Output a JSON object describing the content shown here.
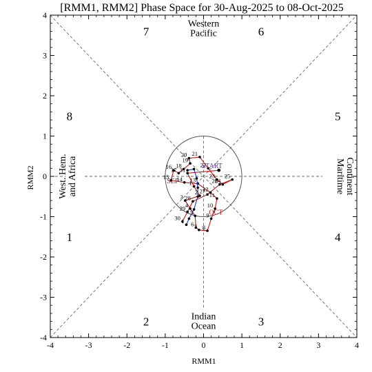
{
  "chart_data": {
    "type": "line",
    "title": "[RMM1, RMM2] Phase Space for 30-Aug-2025 to 08-Oct-2025",
    "xlabel": "RMM1",
    "ylabel": "RMM2",
    "xlim": [
      -4,
      4
    ],
    "ylim": [
      -4,
      4
    ],
    "xticks": [
      "-4",
      "-3",
      "-2",
      "-1",
      "0",
      "1",
      "2",
      "3",
      "4"
    ],
    "yticks": [
      "-4",
      "-3",
      "-2",
      "-1",
      "0",
      "1",
      "2",
      "3",
      "4"
    ],
    "unit_circle_radius": 1,
    "phases": [
      {
        "label": "1",
        "x": -3.5,
        "y": -1.5
      },
      {
        "label": "2",
        "x": -1.5,
        "y": -3.6
      },
      {
        "label": "3",
        "x": 1.5,
        "y": -3.6
      },
      {
        "label": "4",
        "x": 3.5,
        "y": -1.5
      },
      {
        "label": "5",
        "x": 3.5,
        "y": 1.5
      },
      {
        "label": "6",
        "x": 1.5,
        "y": 3.6
      },
      {
        "label": "7",
        "x": -1.5,
        "y": 3.6
      },
      {
        "label": "8",
        "x": -3.5,
        "y": 1.5
      }
    ],
    "regions": [
      {
        "lines": [
          "Western",
          "Pacific"
        ],
        "x": 0,
        "y": 3.72,
        "orient": "h"
      },
      {
        "lines": [
          "Indian",
          "Ocean"
        ],
        "x": 0,
        "y": -3.55,
        "orient": "h"
      },
      {
        "lines": [
          "West. Hem.",
          "and Africa"
        ],
        "x": -3.55,
        "y": 0,
        "orient": "l"
      },
      {
        "lines": [
          "Maritime",
          "Continent"
        ],
        "x": 3.55,
        "y": 0,
        "orient": "r"
      }
    ],
    "start_label": "START",
    "month_labels": [
      {
        "text": "SEP",
        "x": -0.8,
        "y": -0.17
      },
      {
        "text": "OCT",
        "x": 0.32,
        "y": -0.95
      }
    ],
    "series": [
      {
        "color": "#d01010",
        "points": [
          {
            "x": 0.4,
            "y": 0.15,
            "label": ""
          },
          {
            "x": -0.42,
            "y": 0.08,
            "label": "31"
          },
          {
            "x": -0.25,
            "y": -0.25,
            "label": "1"
          },
          {
            "x": -0.1,
            "y": -0.48,
            "label": "2"
          },
          {
            "x": -0.48,
            "y": -0.6,
            "label": "3"
          },
          {
            "x": -0.35,
            "y": -0.8,
            "label": "4"
          },
          {
            "x": -0.22,
            "y": -0.98,
            "label": "5"
          },
          {
            "x": -0.2,
            "y": -1.27,
            "label": "6"
          },
          {
            "x": -0.12,
            "y": -1.33,
            "label": "7"
          },
          {
            "x": 0.1,
            "y": -1.35,
            "label": "8"
          },
          {
            "x": 0.2,
            "y": -1.05,
            "label": "9"
          },
          {
            "x": 0.3,
            "y": -0.8,
            "label": "10"
          },
          {
            "x": 0.35,
            "y": -0.55,
            "label": "11"
          },
          {
            "x": 0.18,
            "y": -0.4,
            "label": "12"
          },
          {
            "x": -0.15,
            "y": -0.18,
            "label": "13"
          },
          {
            "x": -0.5,
            "y": -0.15,
            "label": "14"
          },
          {
            "x": -0.85,
            "y": -0.1,
            "label": "15"
          },
          {
            "x": -0.78,
            "y": 0.15,
            "label": "16"
          },
          {
            "x": -0.65,
            "y": 0.08,
            "label": "17"
          },
          {
            "x": -0.52,
            "y": 0.18,
            "label": "18"
          },
          {
            "x": -0.35,
            "y": 0.32,
            "label": "19"
          },
          {
            "x": -0.38,
            "y": 0.45,
            "label": "20"
          },
          {
            "x": -0.1,
            "y": 0.48,
            "label": "21"
          },
          {
            "x": 0.12,
            "y": 0.2,
            "label": "22"
          },
          {
            "x": 0.35,
            "y": -0.08,
            "label": "23"
          },
          {
            "x": 0.5,
            "y": -0.2,
            "label": "24"
          },
          {
            "x": 0.75,
            "y": -0.08,
            "label": "25"
          },
          {
            "x": 0.42,
            "y": -0.2,
            "label": "26"
          },
          {
            "x": 0.1,
            "y": -0.45,
            "label": "27"
          },
          {
            "x": -0.28,
            "y": -0.62,
            "label": "28"
          },
          {
            "x": -0.42,
            "y": -0.88,
            "label": "29"
          },
          {
            "x": -0.55,
            "y": -1.12,
            "label": "30"
          }
        ]
      },
      {
        "color": "#1030d0",
        "points": [
          {
            "x": -0.45,
            "y": -1.2,
            "label": "1"
          },
          {
            "x": -0.38,
            "y": -1.05,
            "label": ""
          },
          {
            "x": -0.25,
            "y": -0.82,
            "label": ""
          },
          {
            "x": -0.15,
            "y": -0.5,
            "label": ""
          },
          {
            "x": -0.15,
            "y": -0.28,
            "label": ""
          },
          {
            "x": -0.18,
            "y": -0.05,
            "label": ""
          },
          {
            "x": -0.25,
            "y": 0.18,
            "label": ""
          },
          {
            "x": -0.42,
            "y": 0.15,
            "label": ""
          }
        ]
      }
    ]
  }
}
